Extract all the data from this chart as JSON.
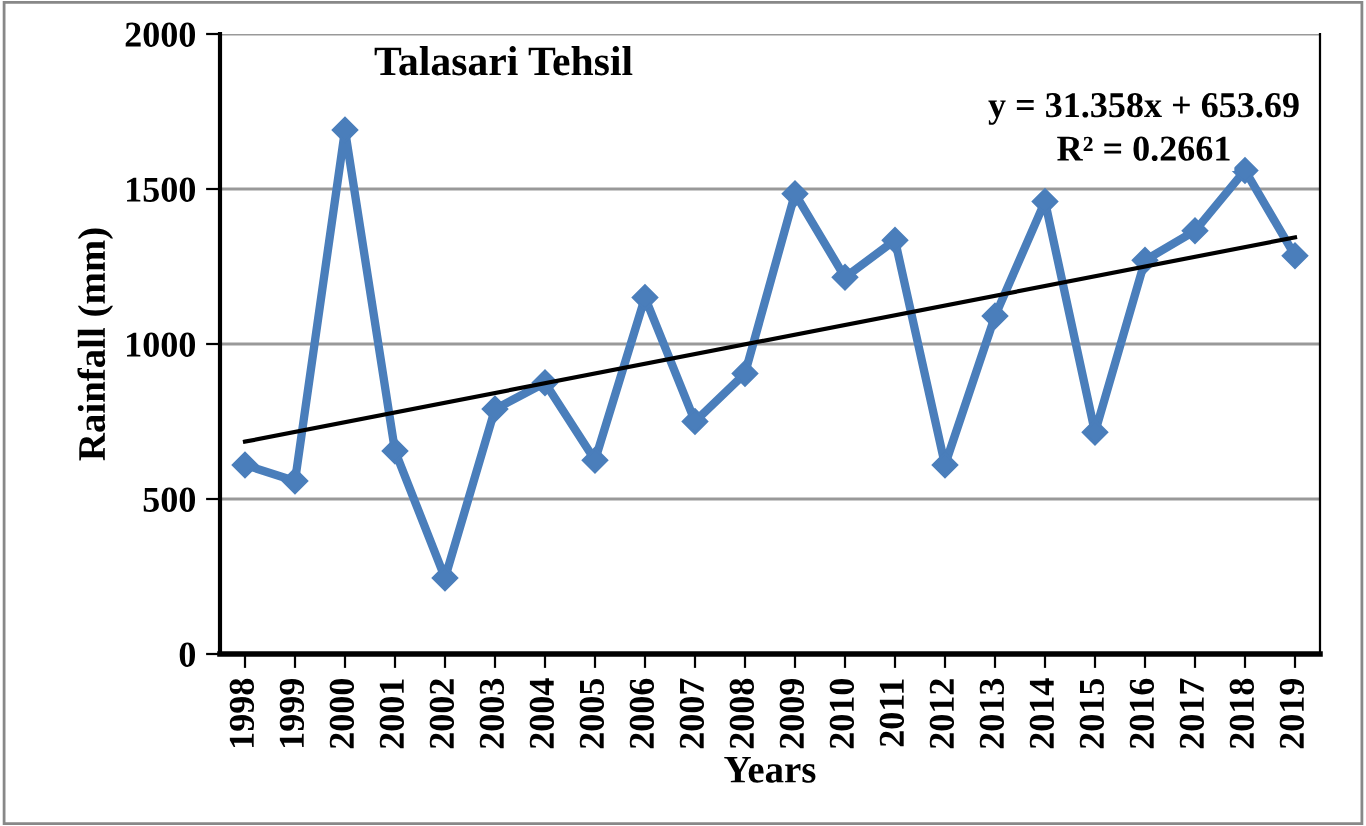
{
  "chart_data": {
    "type": "line",
    "title": "Talasari Tehsil",
    "xlabel": "Years",
    "ylabel": "Rainfall (mm)",
    "x": [
      1998,
      1999,
      2000,
      2001,
      2002,
      2003,
      2004,
      2005,
      2006,
      2007,
      2008,
      2009,
      2010,
      2011,
      2012,
      2013,
      2014,
      2015,
      2016,
      2017,
      2018,
      2019
    ],
    "series": [
      {
        "color": "#4a7ebb",
        "marker": "diamond",
        "values": [
          610,
          558,
          1690,
          655,
          245,
          790,
          875,
          625,
          1150,
          750,
          905,
          1485,
          1215,
          1335,
          610,
          1090,
          1460,
          715,
          1270,
          1365,
          1560,
          1285
        ]
      },
      {
        "type": "line",
        "color": "#000000",
        "marker": "none",
        "x": [
          1998,
          2019
        ],
        "values": [
          685,
          1344
        ]
      }
    ],
    "annotations": [
      "y = 31.358x + 653.69",
      "R² = 0.2661"
    ],
    "xlim": [
      1997.5,
      2019.5
    ],
    "xticks": [
      1998,
      1999,
      2000,
      2001,
      2002,
      2003,
      2004,
      2005,
      2006,
      2007,
      2008,
      2009,
      2010,
      2011,
      2012,
      2013,
      2014,
      2015,
      2016,
      2017,
      2018,
      2019
    ],
    "ylim": [
      0,
      2000
    ],
    "yticks": [
      0,
      500,
      1000,
      1500,
      2000
    ],
    "grid": "y",
    "legend": false
  }
}
